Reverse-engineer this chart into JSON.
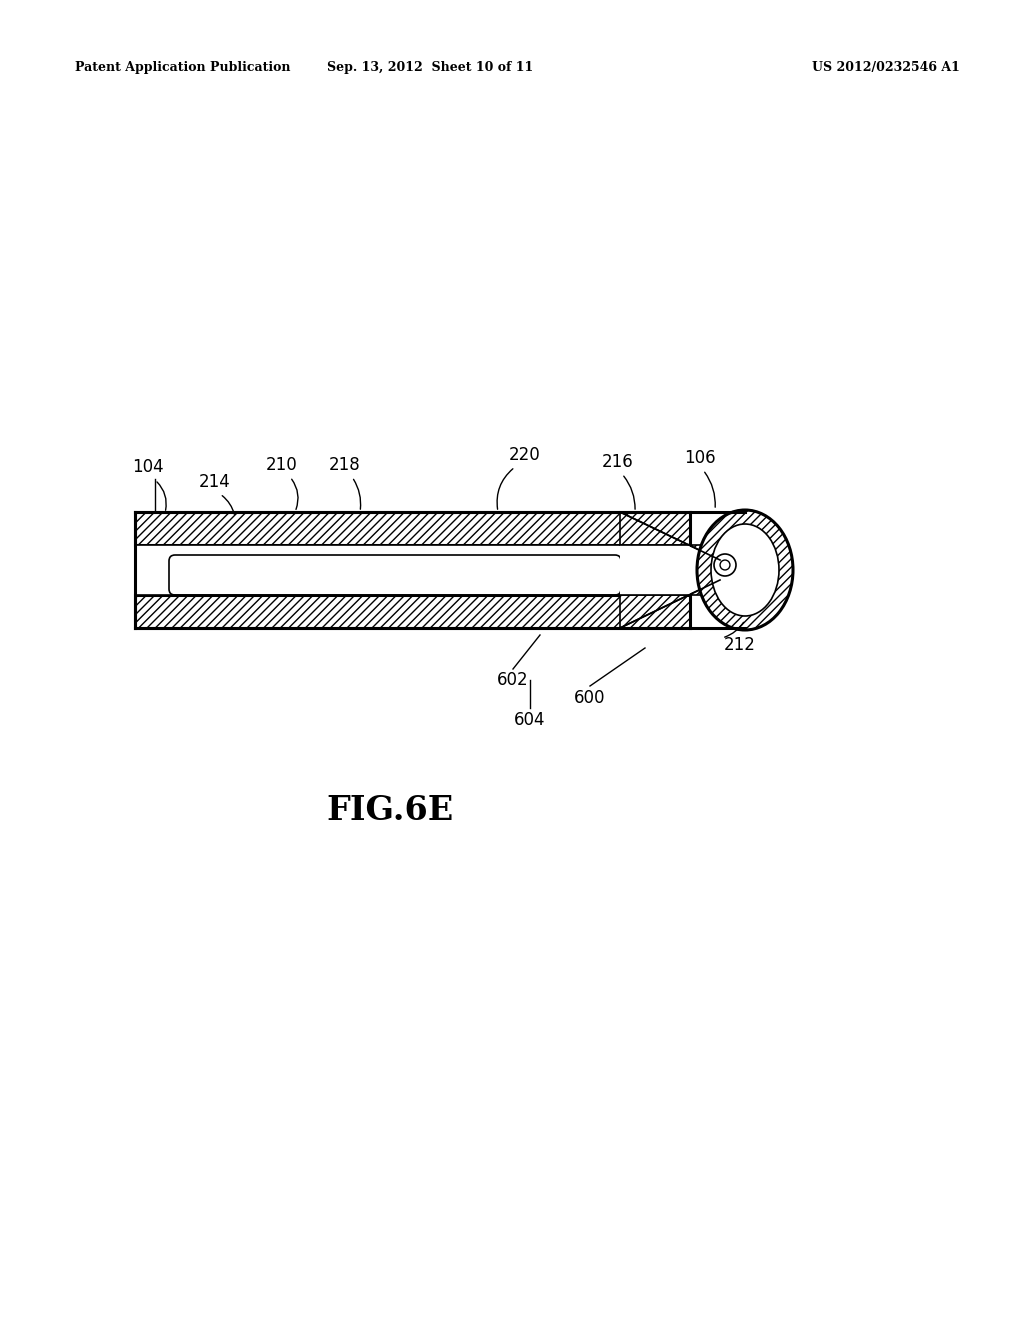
{
  "bg_color": "#ffffff",
  "line_color": "#000000",
  "header_left": "Patent Application Publication",
  "header_center": "Sep. 13, 2012  Sheet 10 of 11",
  "header_right": "US 2012/0232546 A1",
  "figure_label": "FIG.6E",
  "lw_outer": 2.2,
  "lw_inner": 1.2,
  "label_fontsize": 12
}
